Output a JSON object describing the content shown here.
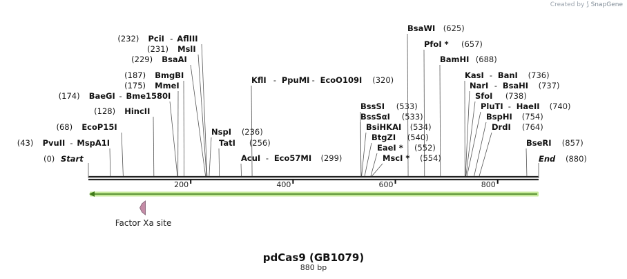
{
  "credit": {
    "prefix": "Created by",
    "brand": "SnapGene"
  },
  "map": {
    "name": "pdCas9 (GB1079)",
    "length_label": "880 bp",
    "length": 880,
    "start_label": "Start",
    "end_label": "End",
    "start_pos": "(0)",
    "end_pos": "(880)"
  },
  "ruler": {
    "ticks": [
      200,
      400,
      600,
      800
    ]
  },
  "sites": [
    {
      "id": "pvuii",
      "names": [
        "PvuII",
        "MspA1I"
      ],
      "pos": 43
    },
    {
      "id": "ecop15i",
      "names": [
        "EcoP15I"
      ],
      "pos": 68
    },
    {
      "id": "hincii",
      "names": [
        "HincII"
      ],
      "pos": 128
    },
    {
      "id": "baegi",
      "names": [
        "BaeGI",
        "Bme1580I"
      ],
      "pos": 174
    },
    {
      "id": "mmei",
      "names": [
        "MmeI"
      ],
      "pos": 175
    },
    {
      "id": "bmgbi",
      "names": [
        "BmgBI"
      ],
      "pos": 187
    },
    {
      "id": "bsaai",
      "names": [
        "BsaAI"
      ],
      "pos": 229
    },
    {
      "id": "msli",
      "names": [
        "MslI"
      ],
      "pos": 231
    },
    {
      "id": "pcii",
      "names": [
        "PciI",
        "AflIII"
      ],
      "pos": 232
    },
    {
      "id": "nspi",
      "names": [
        "NspI"
      ],
      "pos": 236
    },
    {
      "id": "tati",
      "names": [
        "TatI"
      ],
      "pos": 256
    },
    {
      "id": "acui",
      "names": [
        "AcuI",
        "Eco57MI"
      ],
      "pos": 299
    },
    {
      "id": "kfli",
      "names": [
        "KflI",
        "PpuMI",
        "EcoO109I"
      ],
      "pos": 320
    },
    {
      "id": "bsssi",
      "names": [
        "BssSI"
      ],
      "pos": 533
    },
    {
      "id": "bsssai",
      "names": [
        "BssSαI"
      ],
      "pos": 533
    },
    {
      "id": "bsihkai",
      "names": [
        "BsiHKAI"
      ],
      "pos": 534
    },
    {
      "id": "btgzi",
      "names": [
        "BtgZI"
      ],
      "pos": 540
    },
    {
      "id": "eaei",
      "names": [
        "EaeI *"
      ],
      "pos": 552
    },
    {
      "id": "msci",
      "names": [
        "MscI *"
      ],
      "pos": 554
    },
    {
      "id": "bsawi",
      "names": [
        "BsaWI"
      ],
      "pos": 625
    },
    {
      "id": "pfoi",
      "names": [
        "PfoI *"
      ],
      "pos": 657
    },
    {
      "id": "bamhi",
      "names": [
        "BamHI"
      ],
      "pos": 688
    },
    {
      "id": "kasi",
      "names": [
        "KasI",
        "BanI"
      ],
      "pos": 736
    },
    {
      "id": "nari",
      "names": [
        "NarI",
        "BsaHI"
      ],
      "pos": 737
    },
    {
      "id": "sfoi",
      "names": [
        "SfoI"
      ],
      "pos": 738
    },
    {
      "id": "pluti",
      "names": [
        "PluTI",
        "HaeII"
      ],
      "pos": 740
    },
    {
      "id": "bsphi",
      "names": [
        "BspHI"
      ],
      "pos": 754
    },
    {
      "id": "drdi",
      "names": [
        "DrdI"
      ],
      "pos": 764
    },
    {
      "id": "bseri",
      "names": [
        "BseRI"
      ],
      "pos": 857
    }
  ],
  "features": [
    {
      "id": "factor-xa",
      "label": "Factor Xa site",
      "pos": 106,
      "color": "#c58ca7"
    }
  ],
  "orf": {
    "color": "#c6ea9a",
    "arrow_color": "#3f7a19",
    "direction": "reverse",
    "from": 0,
    "to": 880
  },
  "colors": {
    "backbone": "#222222",
    "pointer": "#555555",
    "pos_text": "#222222"
  }
}
